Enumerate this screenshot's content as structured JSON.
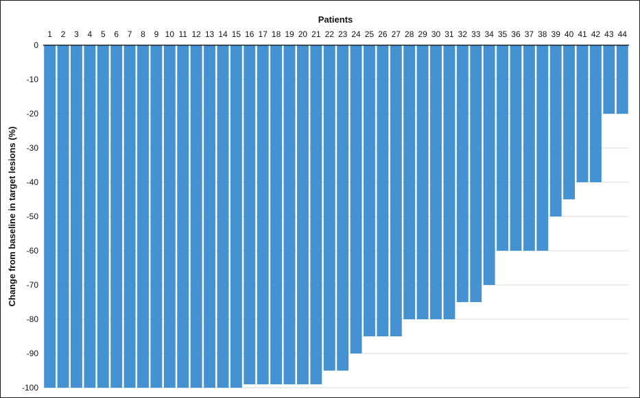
{
  "chart_data": {
    "type": "bar",
    "title": "Patients",
    "xlabel": "Patients",
    "ylabel": "Change from baseline in target lesions (%)",
    "categories": [
      "1",
      "2",
      "3",
      "4",
      "5",
      "6",
      "7",
      "8",
      "9",
      "10",
      "11",
      "12",
      "13",
      "14",
      "15",
      "16",
      "17",
      "18",
      "19",
      "20",
      "21",
      "22",
      "23",
      "24",
      "25",
      "26",
      "27",
      "28",
      "29",
      "30",
      "31",
      "32",
      "33",
      "34",
      "35",
      "36",
      "37",
      "38",
      "39",
      "40",
      "41",
      "42",
      "43",
      "44"
    ],
    "values": [
      -100,
      -100,
      -100,
      -100,
      -100,
      -100,
      -100,
      -100,
      -100,
      -100,
      -100,
      -100,
      -100,
      -100,
      -100,
      -99,
      -99,
      -99,
      -99,
      -99,
      -99,
      -95,
      -95,
      -90,
      -85,
      -85,
      -85,
      -80,
      -80,
      -80,
      -80,
      -75,
      -75,
      -70,
      -60,
      -60,
      -60,
      -60,
      -50,
      -45,
      -40,
      -40,
      -20,
      -20
    ],
    "ylim": [
      -100,
      0
    ],
    "yticks": [
      0,
      -10,
      -20,
      -30,
      -40,
      -50,
      -60,
      -70,
      -80,
      -90,
      -100
    ],
    "x_axis_position": "top",
    "grid": true,
    "bar_color": "#4592d2",
    "grid_color": "#d9d9d9"
  }
}
